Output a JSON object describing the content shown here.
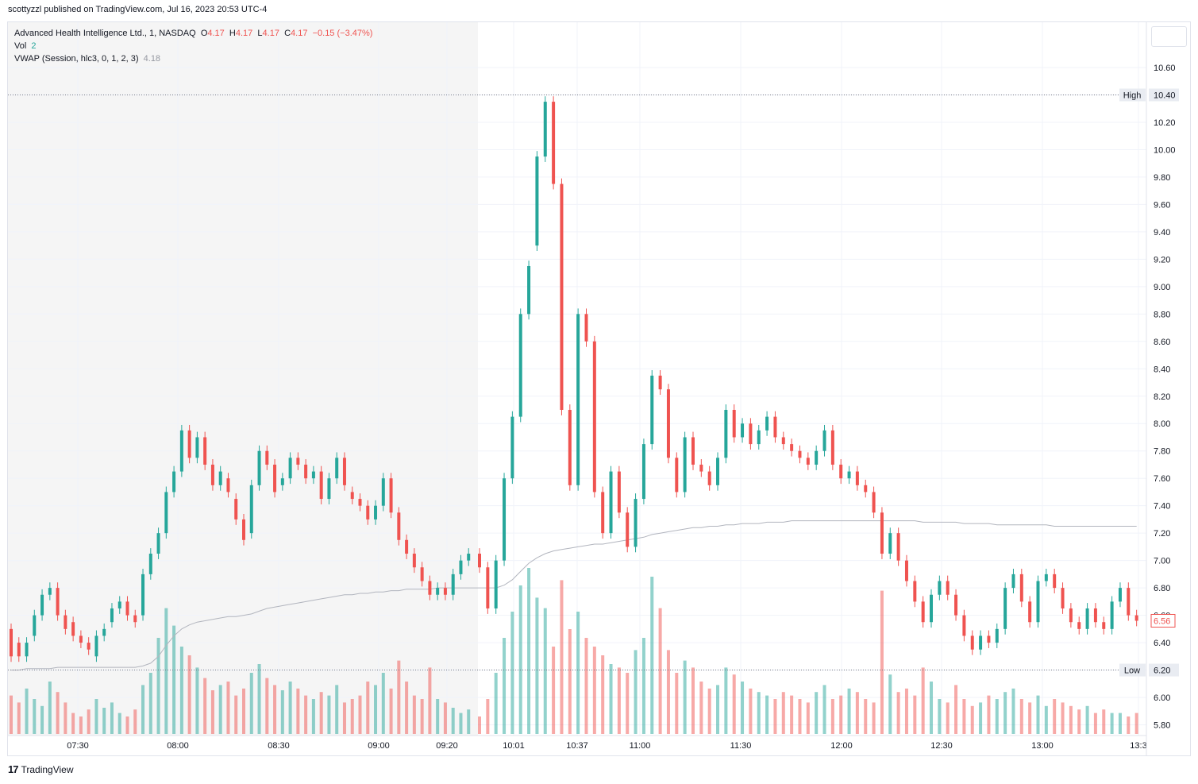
{
  "published": "scottyzzl published on TradingView.com, Jul 16, 2023 20:53 UTC-4",
  "legend": {
    "symbol": "Advanced Health Intelligence Ltd., 1, NASDAQ",
    "o_label": "O",
    "o_val": "4.17",
    "h_label": "H",
    "h_val": "4.17",
    "l_label": "L",
    "l_val": "4.17",
    "c_label": "C",
    "c_val": "4.17",
    "change": "−0.15 (−3.47%)",
    "vol_label": "Vol",
    "vol_val": "2",
    "vwap_label": "VWAP (Session, hlc3, 0, 1, 2, 3)",
    "vwap_val": "4.18"
  },
  "footer": {
    "logo": "17",
    "brand": "TradingView"
  },
  "colors": {
    "up": "#26a69a",
    "down": "#ef5350",
    "vwap": "#b2b5be",
    "premarket_bg": "#f5f5f5",
    "grid": "#f0f3fa",
    "last_label": "#ef5350"
  },
  "chart_data": {
    "type": "candlestick",
    "symbol": "Advanced Health Intelligence Ltd., 1, NASDAQ",
    "ylim": [
      5.7,
      10.75
    ],
    "y_ticks": [
      "10.60",
      "10.40",
      "10.20",
      "10.00",
      "9.80",
      "9.60",
      "9.40",
      "9.20",
      "9.00",
      "8.80",
      "8.60",
      "8.40",
      "8.20",
      "8.00",
      "7.80",
      "7.60",
      "7.40",
      "7.20",
      "7.00",
      "6.80",
      "6.60",
      "6.40",
      "6.20",
      "6.00",
      "5.80"
    ],
    "x_ticks": [
      "07:30",
      "08:00",
      "08:30",
      "09:00",
      "09:20",
      "10:01",
      "10:37",
      "11:00",
      "11:30",
      "12:00",
      "12:30",
      "13:00",
      "13:3"
    ],
    "high": {
      "label": "High",
      "value": "10.40"
    },
    "low": {
      "label": "Low",
      "value": "6.20"
    },
    "last_price": "6.56",
    "candles": [
      [
        6.5,
        6.3
      ],
      [
        6.4,
        6.3
      ],
      [
        6.3,
        6.4
      ],
      [
        6.45,
        6.6
      ],
      [
        6.6,
        6.75
      ],
      [
        6.75,
        6.8
      ],
      [
        6.8,
        6.6
      ],
      [
        6.6,
        6.5
      ],
      [
        6.55,
        6.45
      ],
      [
        6.45,
        6.4
      ],
      [
        6.4,
        6.35
      ],
      [
        6.3,
        6.45
      ],
      [
        6.45,
        6.5
      ],
      [
        6.55,
        6.65
      ],
      [
        6.65,
        6.7
      ],
      [
        6.7,
        6.6
      ],
      [
        6.6,
        6.55
      ],
      [
        6.6,
        6.9
      ],
      [
        6.9,
        7.05
      ],
      [
        7.05,
        7.2
      ],
      [
        7.2,
        7.5
      ],
      [
        7.5,
        7.65
      ],
      [
        7.65,
        7.95
      ],
      [
        7.95,
        7.75
      ],
      [
        7.75,
        7.9
      ],
      [
        7.9,
        7.7
      ],
      [
        7.7,
        7.55
      ],
      [
        7.55,
        7.65
      ],
      [
        7.6,
        7.5
      ],
      [
        7.45,
        7.3
      ],
      [
        7.3,
        7.15
      ],
      [
        7.2,
        7.55
      ],
      [
        7.55,
        7.8
      ],
      [
        7.8,
        7.7
      ],
      [
        7.7,
        7.5
      ],
      [
        7.55,
        7.6
      ],
      [
        7.6,
        7.75
      ],
      [
        7.75,
        7.7
      ],
      [
        7.7,
        7.6
      ],
      [
        7.6,
        7.65
      ],
      [
        7.65,
        7.45
      ],
      [
        7.45,
        7.6
      ],
      [
        7.6,
        7.75
      ],
      [
        7.75,
        7.55
      ],
      [
        7.5,
        7.45
      ],
      [
        7.45,
        7.4
      ],
      [
        7.4,
        7.3
      ],
      [
        7.3,
        7.4
      ],
      [
        7.4,
        7.6
      ],
      [
        7.6,
        7.35
      ],
      [
        7.35,
        7.15
      ],
      [
        7.15,
        7.05
      ],
      [
        7.05,
        6.95
      ],
      [
        6.95,
        6.85
      ],
      [
        6.85,
        6.75
      ],
      [
        6.75,
        6.8
      ],
      [
        6.8,
        6.75
      ],
      [
        6.75,
        6.9
      ],
      [
        6.9,
        7.0
      ],
      [
        7.0,
        7.05
      ],
      [
        7.05,
        6.95
      ],
      [
        6.95,
        6.65
      ],
      [
        6.65,
        7.0
      ],
      [
        7.0,
        7.6
      ],
      [
        7.6,
        8.05
      ],
      [
        8.05,
        8.8
      ],
      [
        8.8,
        9.15
      ],
      [
        9.3,
        9.95
      ],
      [
        9.95,
        10.35
      ],
      [
        10.35,
        9.75
      ],
      [
        9.75,
        8.1
      ],
      [
        8.1,
        7.55
      ],
      [
        7.55,
        8.8
      ],
      [
        8.8,
        8.6
      ],
      [
        8.6,
        7.5
      ],
      [
        7.5,
        7.2
      ],
      [
        7.2,
        7.65
      ],
      [
        7.65,
        7.35
      ],
      [
        7.35,
        7.1
      ],
      [
        7.1,
        7.45
      ],
      [
        7.45,
        7.85
      ],
      [
        7.85,
        8.35
      ],
      [
        8.35,
        8.25
      ],
      [
        8.25,
        7.75
      ],
      [
        7.75,
        7.5
      ],
      [
        7.5,
        7.9
      ],
      [
        7.9,
        7.7
      ],
      [
        7.7,
        7.65
      ],
      [
        7.65,
        7.55
      ],
      [
        7.55,
        7.75
      ],
      [
        7.75,
        8.1
      ],
      [
        8.1,
        7.9
      ],
      [
        7.9,
        8.0
      ],
      [
        8.0,
        7.85
      ],
      [
        7.85,
        7.95
      ],
      [
        7.95,
        8.05
      ],
      [
        8.05,
        7.9
      ],
      [
        7.9,
        7.85
      ],
      [
        7.85,
        7.8
      ],
      [
        7.8,
        7.75
      ],
      [
        7.75,
        7.7
      ],
      [
        7.7,
        7.8
      ],
      [
        7.8,
        7.95
      ],
      [
        7.95,
        7.7
      ],
      [
        7.7,
        7.6
      ],
      [
        7.6,
        7.65
      ],
      [
        7.65,
        7.55
      ],
      [
        7.55,
        7.5
      ],
      [
        7.5,
        7.35
      ],
      [
        7.35,
        7.05
      ],
      [
        7.05,
        7.2
      ],
      [
        7.2,
        7.0
      ],
      [
        7.0,
        6.85
      ],
      [
        6.85,
        6.7
      ],
      [
        6.7,
        6.55
      ],
      [
        6.55,
        6.75
      ],
      [
        6.75,
        6.85
      ],
      [
        6.85,
        6.75
      ],
      [
        6.75,
        6.6
      ],
      [
        6.6,
        6.45
      ],
      [
        6.45,
        6.35
      ],
      [
        6.35,
        6.45
      ],
      [
        6.45,
        6.4
      ],
      [
        6.4,
        6.5
      ],
      [
        6.5,
        6.8
      ],
      [
        6.8,
        6.9
      ],
      [
        6.9,
        6.7
      ],
      [
        6.7,
        6.55
      ],
      [
        6.55,
        6.85
      ],
      [
        6.85,
        6.9
      ],
      [
        6.9,
        6.8
      ],
      [
        6.8,
        6.65
      ],
      [
        6.65,
        6.55
      ],
      [
        6.55,
        6.5
      ],
      [
        6.5,
        6.65
      ],
      [
        6.65,
        6.55
      ],
      [
        6.55,
        6.5
      ],
      [
        6.5,
        6.7
      ],
      [
        6.7,
        6.8
      ],
      [
        6.8,
        6.6
      ],
      [
        6.6,
        6.56
      ]
    ],
    "volume": [
      0.22,
      0.18,
      0.26,
      0.2,
      0.16,
      0.3,
      0.24,
      0.18,
      0.12,
      0.1,
      0.14,
      0.2,
      0.15,
      0.18,
      0.12,
      0.1,
      0.14,
      0.28,
      0.35,
      0.55,
      0.72,
      0.62,
      0.5,
      0.45,
      0.38,
      0.32,
      0.25,
      0.28,
      0.3,
      0.22,
      0.26,
      0.35,
      0.4,
      0.32,
      0.28,
      0.25,
      0.3,
      0.26,
      0.22,
      0.2,
      0.24,
      0.22,
      0.28,
      0.18,
      0.2,
      0.22,
      0.3,
      0.28,
      0.35,
      0.26,
      0.42,
      0.3,
      0.22,
      0.2,
      0.38,
      0.2,
      0.18,
      0.15,
      0.12,
      0.14,
      0.1,
      0.2,
      0.35,
      0.55,
      0.7,
      0.85,
      0.95,
      0.78,
      0.72,
      0.5,
      0.88,
      0.6,
      0.7,
      0.55,
      0.5,
      0.45,
      0.4,
      0.38,
      0.35,
      0.48,
      0.55,
      0.9,
      0.72,
      0.48,
      0.35,
      0.42,
      0.38,
      0.3,
      0.26,
      0.28,
      0.38,
      0.34,
      0.3,
      0.26,
      0.24,
      0.22,
      0.2,
      0.24,
      0.22,
      0.2,
      0.18,
      0.24,
      0.28,
      0.2,
      0.22,
      0.26,
      0.24,
      0.2,
      0.18,
      0.82,
      0.34,
      0.24,
      0.26,
      0.22,
      0.38,
      0.3,
      0.2,
      0.18,
      0.28,
      0.2,
      0.16,
      0.18,
      0.22,
      0.2,
      0.24,
      0.26,
      0.2,
      0.18,
      0.22,
      0.16,
      0.2,
      0.18,
      0.16,
      0.14,
      0.16,
      0.12,
      0.14,
      0.12,
      0.12,
      0.1,
      0.12
    ],
    "vwap": [
      6.2,
      6.2,
      6.21,
      6.21,
      6.21,
      6.21,
      6.22,
      6.22,
      6.22,
      6.22,
      6.22,
      6.22,
      6.22,
      6.22,
      6.22,
      6.22,
      6.22,
      6.23,
      6.25,
      6.3,
      6.38,
      6.45,
      6.5,
      6.53,
      6.55,
      6.56,
      6.57,
      6.58,
      6.59,
      6.59,
      6.6,
      6.61,
      6.63,
      6.65,
      6.66,
      6.67,
      6.68,
      6.69,
      6.7,
      6.71,
      6.72,
      6.73,
      6.74,
      6.75,
      6.75,
      6.76,
      6.76,
      6.77,
      6.77,
      6.78,
      6.78,
      6.79,
      6.79,
      6.79,
      6.79,
      6.8,
      6.8,
      6.8,
      6.8,
      6.8,
      6.8,
      6.8,
      6.8,
      6.82,
      6.86,
      6.92,
      6.98,
      7.02,
      7.05,
      7.07,
      7.08,
      7.09,
      7.1,
      7.11,
      7.12,
      7.12,
      7.13,
      7.14,
      7.15,
      7.16,
      7.17,
      7.19,
      7.2,
      7.21,
      7.22,
      7.23,
      7.24,
      7.24,
      7.25,
      7.25,
      7.26,
      7.26,
      7.27,
      7.27,
      7.27,
      7.28,
      7.28,
      7.28,
      7.29,
      7.29,
      7.29,
      7.29,
      7.29,
      7.29,
      7.29,
      7.29,
      7.29,
      7.29,
      7.29,
      7.29,
      7.29,
      7.29,
      7.29,
      7.29,
      7.28,
      7.28,
      7.28,
      7.28,
      7.28,
      7.27,
      7.27,
      7.27,
      7.27,
      7.26,
      7.26,
      7.26,
      7.26,
      7.26,
      7.26,
      7.26,
      7.25,
      7.25,
      7.25,
      7.25,
      7.25,
      7.25,
      7.25,
      7.25,
      7.25,
      7.25,
      7.25
    ]
  }
}
